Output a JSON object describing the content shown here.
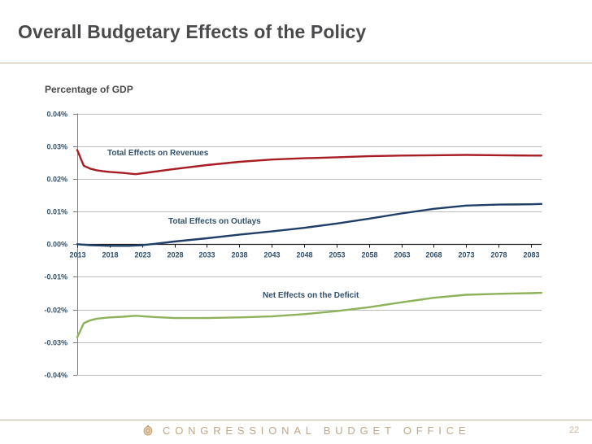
{
  "slide": {
    "title": "Overall Budgetary Effects of the Policy",
    "footer_org": "CONGRESSIONAL BUDGET OFFICE",
    "page_number": "22",
    "colors": {
      "accent_rule": "#c4b59a",
      "footer_text": "#c0a886"
    }
  },
  "chart_data": {
    "type": "line",
    "title": "",
    "xlabel": "",
    "ylabel": "Percentage of GDP",
    "xlim": [
      2013,
      2084.6
    ],
    "ylim": [
      -0.04,
      0.04
    ],
    "grid": true,
    "x_ticks": [
      2013,
      2018,
      2023,
      2028,
      2033,
      2038,
      2043,
      2048,
      2053,
      2058,
      2063,
      2068,
      2073,
      2078,
      2083
    ],
    "x_tick_labels": [
      "2013",
      "2018",
      "2023",
      "2028",
      "2033",
      "2038",
      "2043",
      "2048",
      "2053",
      "2058",
      "2063",
      "2068",
      "2073",
      "2078",
      "2083"
    ],
    "y_ticks": [
      0.04,
      0.03,
      0.02,
      0.01,
      0.0,
      -0.01,
      -0.02,
      -0.03,
      -0.04
    ],
    "y_tick_labels": [
      "0.04%",
      "0.03%",
      "0.02%",
      "0.01%",
      "0.00%",
      "-0.01%",
      "-0.02%",
      "-0.03%",
      "-0.04%"
    ],
    "series": [
      {
        "name": "Total Effects on Revenues",
        "color": "#a81d23",
        "x": [
          2013,
          2014,
          2015,
          2016,
          2017,
          2018,
          2020,
          2022,
          2025,
          2028,
          2033,
          2038,
          2043,
          2048,
          2053,
          2058,
          2063,
          2068,
          2073,
          2078,
          2083,
          2084.6
        ],
        "values": [
          0.0288,
          0.024,
          0.0231,
          0.0226,
          0.0223,
          0.0221,
          0.0218,
          0.0214,
          0.0222,
          0.023,
          0.0242,
          0.0252,
          0.0259,
          0.0263,
          0.0266,
          0.0269,
          0.0271,
          0.0272,
          0.0273,
          0.0272,
          0.0271,
          0.0271
        ]
      },
      {
        "name": "Total Effects on Outlays",
        "color": "#1f3f66",
        "x": [
          2013,
          2015,
          2018,
          2021,
          2023,
          2025,
          2028,
          2033,
          2038,
          2043,
          2048,
          2053,
          2058,
          2063,
          2068,
          2073,
          2078,
          2083,
          2084.6
        ],
        "values": [
          0.0,
          -0.0003,
          -0.0005,
          -0.0005,
          -0.0003,
          0.0001,
          0.0008,
          0.0018,
          0.0029,
          0.0039,
          0.005,
          0.0063,
          0.0078,
          0.0094,
          0.0108,
          0.0118,
          0.0121,
          0.0122,
          0.0123
        ]
      },
      {
        "name": "Net Effects on the Deficit",
        "color": "#8db25a",
        "x": [
          2013,
          2014,
          2015,
          2016,
          2017,
          2018,
          2020,
          2022,
          2025,
          2028,
          2033,
          2038,
          2043,
          2048,
          2053,
          2058,
          2063,
          2068,
          2073,
          2078,
          2083,
          2084.6
        ],
        "values": [
          -0.0285,
          -0.0242,
          -0.0233,
          -0.0228,
          -0.0226,
          -0.0224,
          -0.0222,
          -0.0219,
          -0.0223,
          -0.0226,
          -0.0226,
          -0.0224,
          -0.0221,
          -0.0214,
          -0.0205,
          -0.0193,
          -0.0178,
          -0.0164,
          -0.0155,
          -0.0152,
          -0.015,
          -0.0149
        ]
      }
    ],
    "annotations": [
      {
        "text": "Total Effects on Revenues",
        "series": "Total Effects on Revenues"
      },
      {
        "text": "Total Effects on Outlays",
        "series": "Total Effects on Outlays"
      },
      {
        "text": "Net Effects on the Deficit",
        "series": "Net Effects on the Deficit"
      }
    ]
  }
}
